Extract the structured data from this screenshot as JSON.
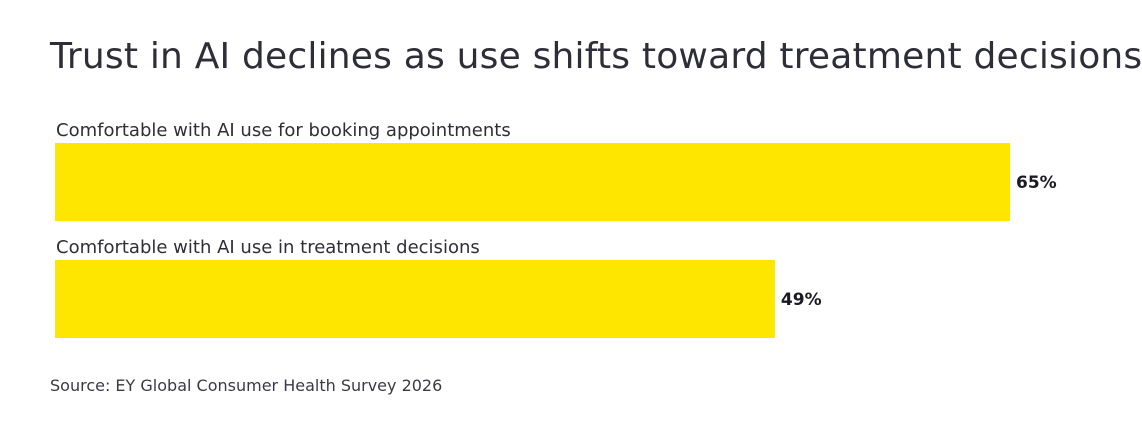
{
  "title": "Trust in AI declines as use shifts toward treatment decisions",
  "source": "Source: EY Global Consumer Health Survey 2026",
  "colors": {
    "bar": "#ffe600",
    "text": "#2e2e38",
    "value_label": "#1a1a24"
  },
  "chart_data": {
    "type": "bar",
    "orientation": "horizontal",
    "title": "Trust in AI declines as use shifts toward treatment decisions",
    "categories": [
      "Comfortable with AI use for booking appointments",
      "Comfortable with AI use in treatment decisions"
    ],
    "values": [
      65,
      49
    ],
    "value_labels": [
      "65%",
      "49%"
    ],
    "unit": "%",
    "xlim": [
      0,
      65
    ],
    "grid": false,
    "legend": "none"
  }
}
